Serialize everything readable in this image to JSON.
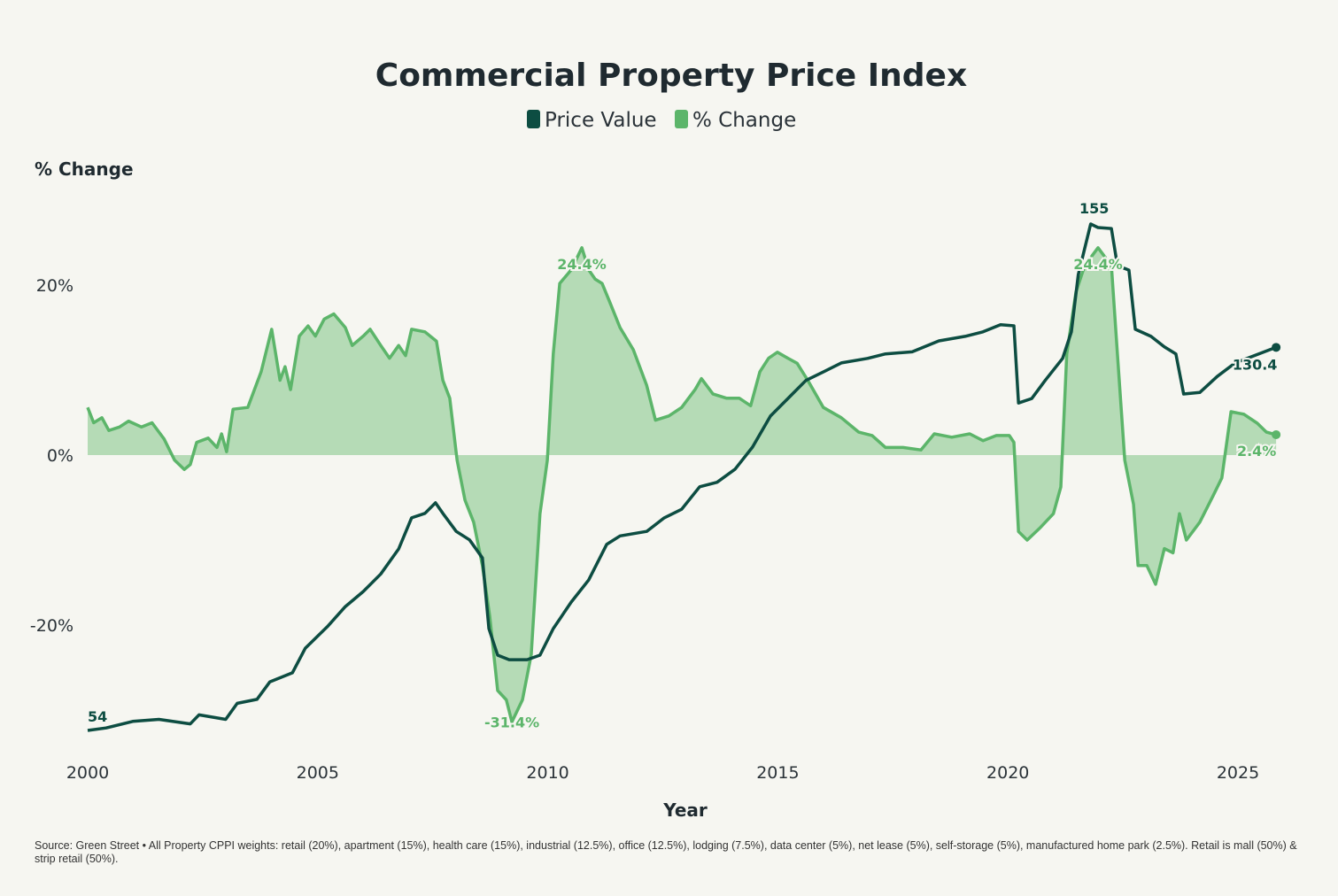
{
  "chart_data": {
    "type": "line",
    "title": "Commercial Property Price Index",
    "ylabel": "% Change",
    "xlabel": "Year",
    "ylim": [
      -35,
      28
    ],
    "xlim": [
      2000,
      2026
    ],
    "y_ticks": [
      "20%",
      "0%",
      "-20%"
    ],
    "y_tick_values": [
      20,
      0,
      -20
    ],
    "x_ticks": [
      "2000",
      "2005",
      "2010",
      "2015",
      "2020",
      "2025"
    ],
    "x_tick_values": [
      2000,
      2005,
      2010,
      2015,
      2020,
      2025
    ],
    "grid": false,
    "legend_position": "top-center",
    "legend": [
      "Price Value",
      "% Change"
    ],
    "colors": {
      "price": "#0d4d42",
      "change_line": "#5cb56a",
      "change_fill": "#b5dbb6"
    },
    "series": [
      {
        "name": "Price Value",
        "axis": "hidden-secondary",
        "x": [
          2000.0,
          2000.4,
          2000.98,
          2001.55,
          2002.23,
          2002.42,
          2003.0,
          2003.25,
          2003.68,
          2003.96,
          2004.45,
          2004.73,
          2005.21,
          2005.6,
          2005.99,
          2006.37,
          2006.76,
          2007.04,
          2007.33,
          2007.56,
          2007.72,
          2008.01,
          2008.3,
          2008.58,
          2008.72,
          2008.91,
          2009.16,
          2009.55,
          2009.83,
          2010.12,
          2010.51,
          2010.89,
          2011.28,
          2011.57,
          2012.15,
          2012.53,
          2012.91,
          2013.3,
          2013.68,
          2014.07,
          2014.45,
          2014.84,
          2015.22,
          2015.61,
          2015.99,
          2016.38,
          2016.95,
          2017.34,
          2017.92,
          2018.5,
          2019.07,
          2019.46,
          2019.84,
          2020.13,
          2020.23,
          2020.52,
          2020.81,
          2021.19,
          2021.38,
          2021.53,
          2021.8,
          2021.96,
          2022.25,
          2022.38,
          2022.63,
          2022.77,
          2023.11,
          2023.4,
          2023.65,
          2023.82,
          2024.17,
          2024.55,
          2024.94,
          2025.83
        ],
        "values": [
          54,
          54.5,
          55.8,
          56.2,
          55.3,
          57.1,
          56.2,
          59.4,
          60.2,
          63.7,
          65.5,
          70.4,
          74.7,
          78.7,
          81.7,
          85.2,
          90.2,
          96.4,
          97.3,
          99.4,
          97.3,
          93.7,
          92.0,
          88.4,
          74.3,
          69.0,
          68.1,
          68.1,
          69.0,
          74.3,
          79.6,
          84.0,
          91.1,
          92.8,
          93.7,
          96.4,
          98.1,
          102.6,
          103.5,
          106.1,
          110.5,
          116.7,
          120.2,
          123.8,
          125.5,
          127.3,
          128.2,
          129.1,
          129.5,
          131.7,
          132.6,
          133.5,
          134.9,
          134.7,
          119.3,
          120.2,
          123.8,
          128.2,
          133.5,
          144.9,
          155.0,
          154.3,
          154.1,
          146.7,
          145.8,
          134.0,
          132.6,
          130.5,
          129.1,
          121.1,
          121.4,
          124.6,
          127.3,
          130.4
        ]
      },
      {
        "name": "% Change",
        "x": [
          2000.0,
          2000.13,
          2000.31,
          2000.46,
          2000.69,
          2000.89,
          2001.17,
          2001.4,
          2001.66,
          2001.89,
          2002.1,
          2002.23,
          2002.37,
          2002.62,
          2002.81,
          2002.91,
          2003.02,
          2003.16,
          2003.48,
          2003.77,
          2004.0,
          2004.18,
          2004.29,
          2004.41,
          2004.6,
          2004.79,
          2004.95,
          2005.14,
          2005.35,
          2005.6,
          2005.75,
          2005.99,
          2006.14,
          2006.37,
          2006.56,
          2006.76,
          2006.91,
          2007.04,
          2007.33,
          2007.58,
          2007.72,
          2007.87,
          2008.03,
          2008.2,
          2008.39,
          2008.58,
          2008.74,
          2008.91,
          2009.1,
          2009.22,
          2009.45,
          2009.64,
          2009.83,
          2009.99,
          2010.12,
          2010.26,
          2010.51,
          2010.74,
          2010.89,
          2011.03,
          2011.18,
          2011.34,
          2011.57,
          2011.86,
          2012.15,
          2012.34,
          2012.63,
          2012.91,
          2013.2,
          2013.34,
          2013.59,
          2013.88,
          2014.16,
          2014.41,
          2014.61,
          2014.8,
          2014.99,
          2015.22,
          2015.42,
          2015.65,
          2015.99,
          2016.38,
          2016.76,
          2017.05,
          2017.34,
          2017.72,
          2018.11,
          2018.4,
          2018.78,
          2019.17,
          2019.46,
          2019.75,
          2020.03,
          2020.13,
          2020.23,
          2020.42,
          2020.71,
          2020.99,
          2021.15,
          2021.28,
          2021.48,
          2021.67,
          2021.96,
          2022.25,
          2022.38,
          2022.54,
          2022.73,
          2022.83,
          2023.02,
          2023.21,
          2023.4,
          2023.59,
          2023.73,
          2023.88,
          2024.17,
          2024.46,
          2024.65,
          2024.85,
          2025.13,
          2025.42,
          2025.62,
          2025.83
        ],
        "values": [
          5.6,
          3.8,
          4.4,
          2.9,
          3.3,
          4.0,
          3.3,
          3.8,
          1.9,
          -0.6,
          -1.7,
          -1.1,
          1.5,
          2.0,
          0.9,
          2.5,
          0.4,
          5.4,
          5.6,
          9.8,
          14.8,
          8.8,
          10.4,
          7.7,
          14.0,
          15.2,
          14.0,
          16.0,
          16.6,
          15.0,
          12.9,
          14.0,
          14.8,
          12.9,
          11.4,
          12.9,
          11.7,
          14.8,
          14.5,
          13.4,
          8.8,
          6.7,
          -0.6,
          -5.3,
          -7.9,
          -13.0,
          -19.0,
          -27.7,
          -28.8,
          -31.4,
          -28.8,
          -23.5,
          -6.9,
          -0.6,
          11.9,
          20.2,
          21.8,
          24.4,
          21.8,
          20.7,
          20.2,
          18.1,
          15.0,
          12.4,
          8.2,
          4.1,
          4.6,
          5.6,
          7.7,
          9.0,
          7.2,
          6.7,
          6.7,
          5.8,
          9.8,
          11.4,
          12.1,
          11.4,
          10.8,
          8.8,
          5.6,
          4.4,
          2.7,
          2.3,
          0.9,
          0.9,
          0.6,
          2.5,
          2.1,
          2.5,
          1.7,
          2.3,
          2.3,
          1.5,
          -9.0,
          -10.0,
          -8.5,
          -6.9,
          -3.75,
          11.9,
          19.2,
          22.3,
          24.4,
          22.3,
          11.9,
          -0.6,
          -5.8,
          -13.0,
          -13.0,
          -15.2,
          -11.0,
          -11.5,
          -6.9,
          -10.0,
          -7.9,
          -4.8,
          -2.7,
          5.1,
          4.8,
          3.75,
          2.7,
          2.4
        ]
      }
    ],
    "annotations": [
      {
        "series": "Price Value",
        "x": 2000.0,
        "y": 54,
        "text": "54"
      },
      {
        "series": "Price Value",
        "x": 2021.8,
        "y": 155,
        "text": "155"
      },
      {
        "series": "Price Value",
        "x": 2025.83,
        "y": 130.4,
        "text": "130.4"
      },
      {
        "series": "% Change",
        "x": 2009.22,
        "y": -31.4,
        "text": "-31.4%"
      },
      {
        "series": "% Change",
        "x": 2010.74,
        "y": 24.4,
        "text": "24.4%"
      },
      {
        "series": "% Change",
        "x": 2021.96,
        "y": 24.4,
        "text": "24.4%"
      },
      {
        "series": "% Change",
        "x": 2025.83,
        "y": 2.4,
        "text": "2.4%"
      }
    ]
  },
  "source": "Source: Green Street • All Property CPPI weights: retail (20%), apartment (15%), health care (15%), industrial (12.5%), office (12.5%), lodging (7.5%), data center (5%), net lease (5%), self-storage (5%), manufactured home park (2.5%). Retail is mall (50%) & strip retail (50%)."
}
